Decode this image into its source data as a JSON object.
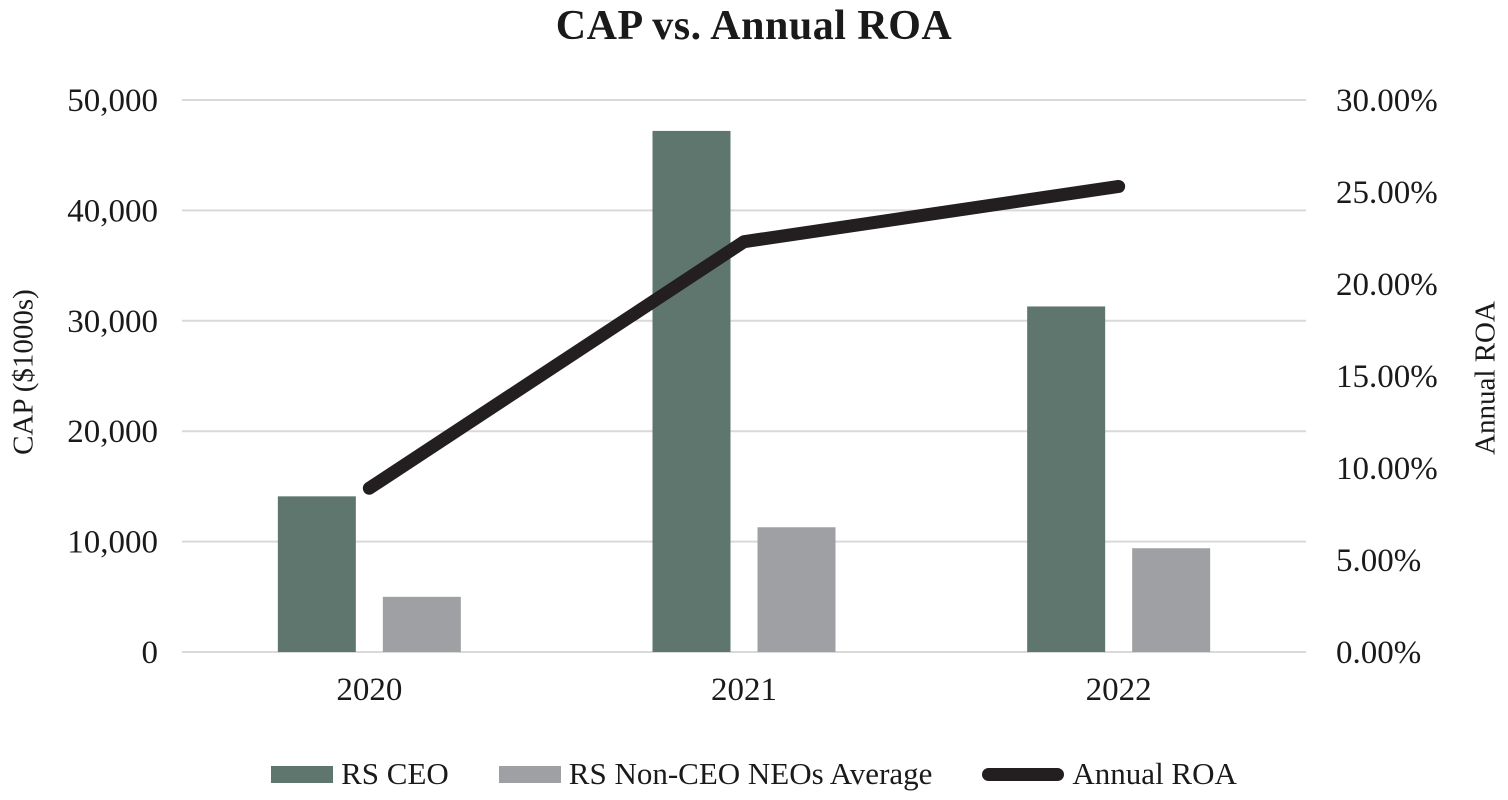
{
  "title": "CAP vs. Annual ROA",
  "chart_data": {
    "type": "bar+line",
    "categories": [
      "2020",
      "2021",
      "2022"
    ],
    "series": [
      {
        "name": "RS CEO",
        "type": "bar",
        "axis": "left",
        "color": "#5E766D",
        "values": [
          14100,
          47200,
          31300
        ]
      },
      {
        "name": "RS Non-CEO NEOs Average",
        "type": "bar",
        "axis": "left",
        "color": "#9EA0A3",
        "values": [
          5000,
          11300,
          9400
        ]
      },
      {
        "name": "Annual ROA",
        "type": "line",
        "axis": "right",
        "color": "#231F20",
        "values": [
          8.9,
          22.3,
          25.3
        ]
      }
    ],
    "left_axis": {
      "label": "CAP ($1000s)",
      "min": 0,
      "max": 50000,
      "step": 10000,
      "tick_labels": [
        "0",
        "10,000",
        "20,000",
        "30,000",
        "40,000",
        "50,000"
      ]
    },
    "right_axis": {
      "label": "Annual ROA",
      "min": 0,
      "max": 30,
      "step": 5,
      "tick_labels": [
        "0.00%",
        "5.00%",
        "10.00%",
        "15.00%",
        "20.00%",
        "25.00%",
        "30.00%"
      ]
    },
    "grid": true,
    "legend_position": "bottom",
    "colors": {
      "gridline": "#D9D9D9",
      "text": "#1a1a1a",
      "background": "#FFFFFF"
    }
  }
}
